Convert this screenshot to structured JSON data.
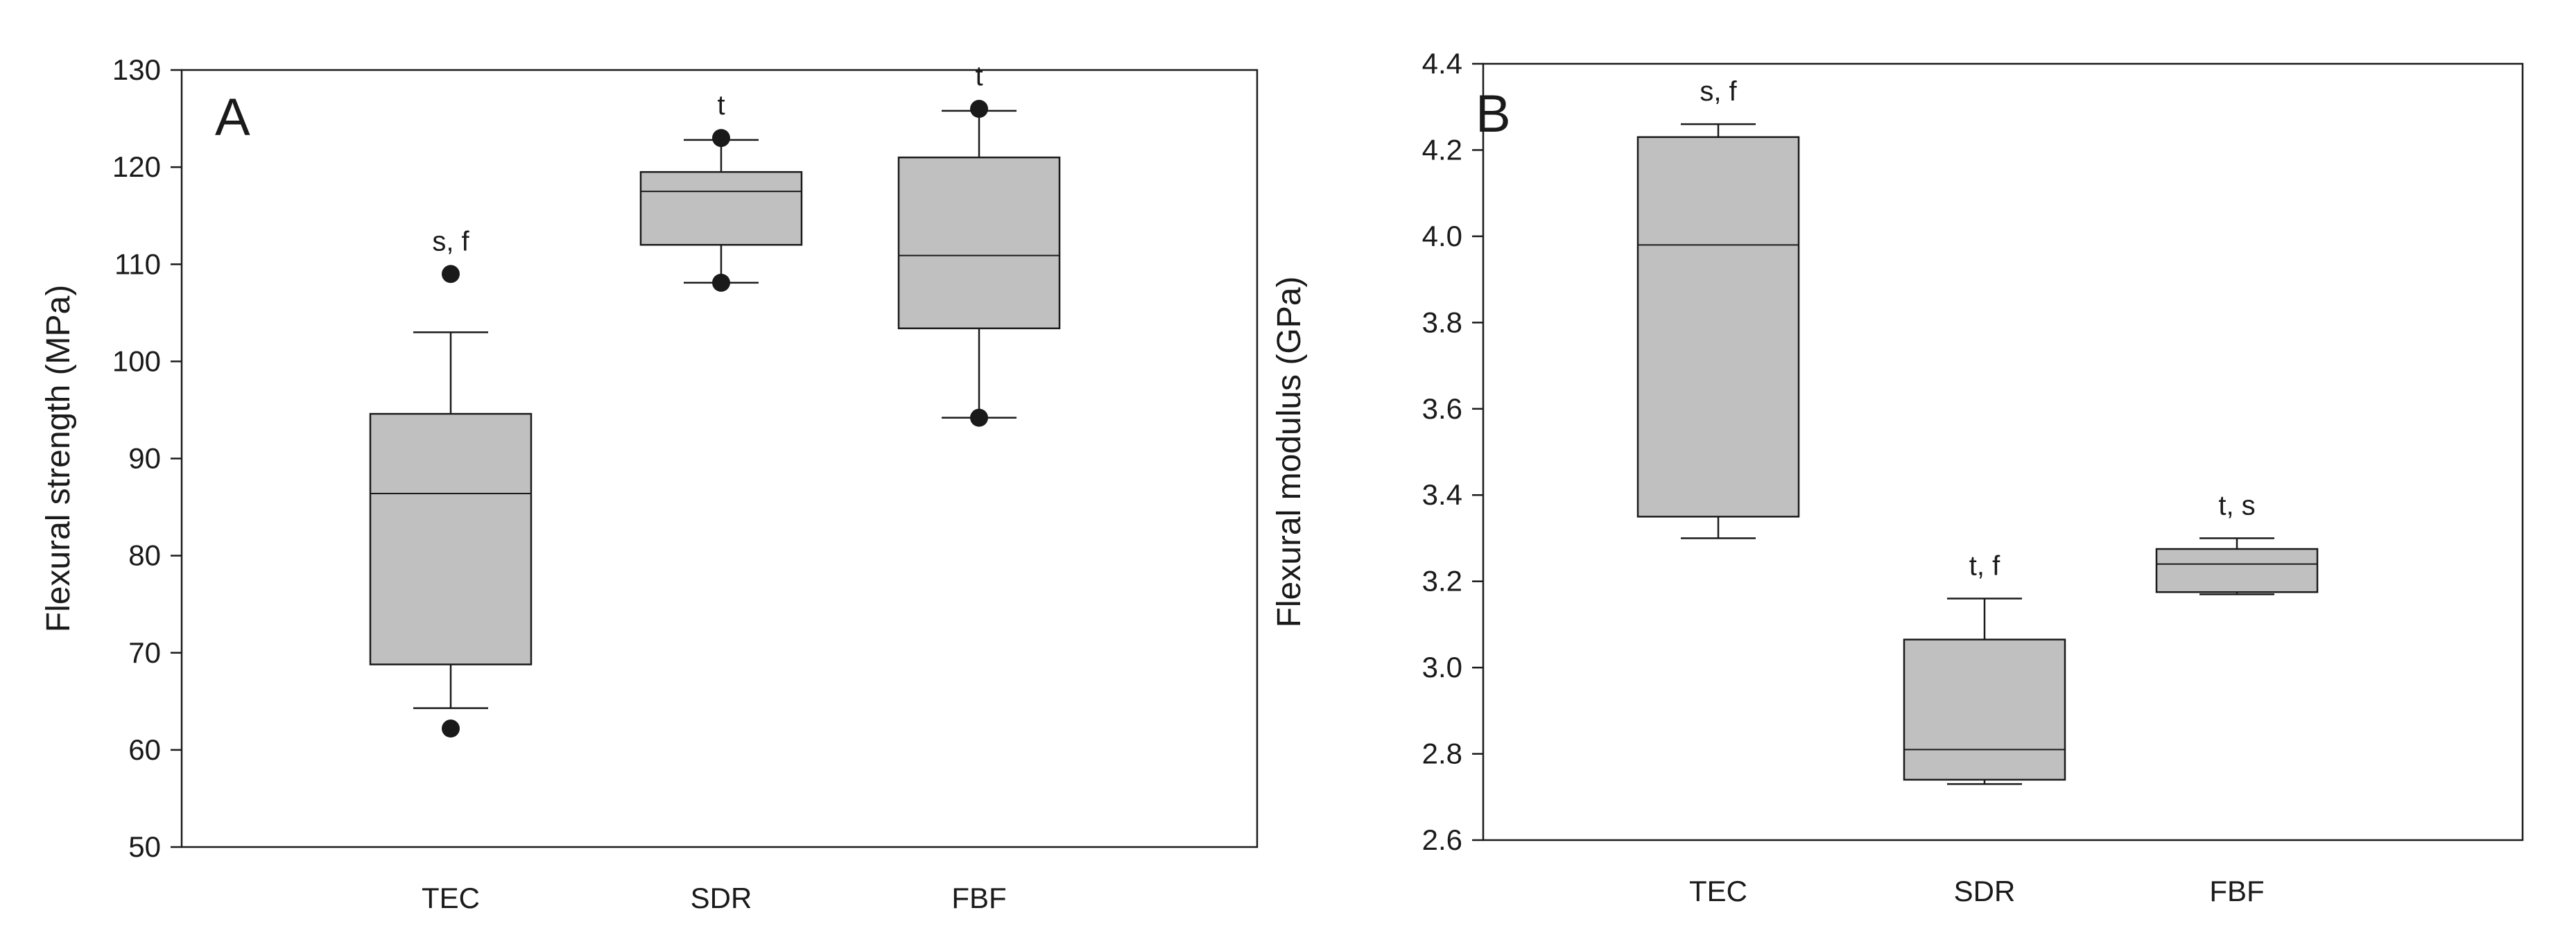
{
  "chart_data": [
    {
      "type": "box",
      "panel_label": "A",
      "ylabel": "Flexural strength (MPa)",
      "xlabel": "",
      "ylim": [
        50,
        130
      ],
      "yticks": [
        50,
        60,
        70,
        80,
        90,
        100,
        110,
        120,
        130
      ],
      "categories": [
        "TEC",
        "SDR",
        "FBF"
      ],
      "boxes": [
        {
          "category": "TEC",
          "q1": 68.8,
          "median": 86.4,
          "q3": 94.6,
          "whisker_low": 64.3,
          "whisker_high": 103.0,
          "outliers": [
            62.2,
            109.0
          ],
          "annotation": "s, f"
        },
        {
          "category": "SDR",
          "q1": 112.0,
          "median": 117.5,
          "q3": 119.5,
          "whisker_low": 108.1,
          "whisker_high": 122.8,
          "outliers": [
            108.1,
            123.0
          ],
          "annotation": "t"
        },
        {
          "category": "FBF",
          "q1": 103.4,
          "median": 110.9,
          "q3": 121.0,
          "whisker_low": 94.2,
          "whisker_high": 125.8,
          "outliers": [
            94.2,
            126.0
          ],
          "annotation": "t"
        }
      ]
    },
    {
      "type": "box",
      "panel_label": "B",
      "ylabel": "Flexural modulus (GPa)",
      "xlabel": "",
      "ylim": [
        2.6,
        4.4
      ],
      "yticks": [
        "2.6",
        "2.8",
        "3.0",
        "3.2",
        "3.4",
        "3.6",
        "3.8",
        "4.0",
        "4.2",
        "4.4"
      ],
      "categories": [
        "TEC",
        "SDR",
        "FBF"
      ],
      "boxes": [
        {
          "category": "TEC",
          "q1": 3.35,
          "median": 3.98,
          "q3": 4.23,
          "whisker_low": 3.3,
          "whisker_high": 4.26,
          "outliers": [],
          "annotation": "s, f"
        },
        {
          "category": "SDR",
          "q1": 2.74,
          "median": 2.81,
          "q3": 3.065,
          "whisker_low": 2.73,
          "whisker_high": 3.16,
          "outliers": [],
          "annotation": "t, f"
        },
        {
          "category": "FBF",
          "q1": 3.175,
          "median": 3.24,
          "q3": 3.275,
          "whisker_low": 3.17,
          "whisker_high": 3.3,
          "outliers": [],
          "annotation": "t, s"
        }
      ]
    }
  ],
  "colors": {
    "box_fill": "#c0c0c0",
    "line": "#1a1a1a",
    "marker": "#1a1a1a",
    "background": "#ffffff"
  }
}
